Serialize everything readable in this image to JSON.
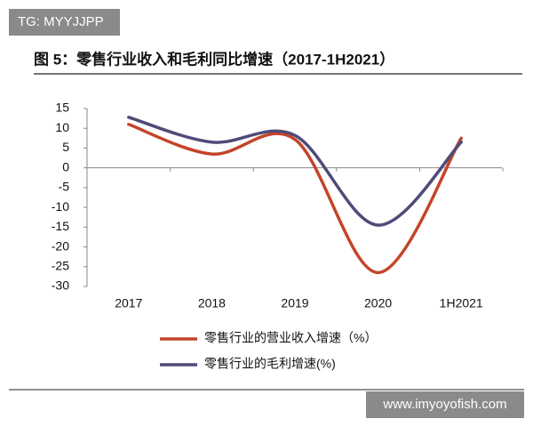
{
  "watermark": "TG: MYYJJPP",
  "footer_watermark": "www.imyoyofish.com",
  "chart_data": {
    "type": "line",
    "title": "图 5：零售行业收入和毛利同比增速（2017-1H2021）",
    "categories": [
      "2017",
      "2018",
      "2019",
      "2020",
      "1H2021"
    ],
    "series": [
      {
        "name": "零售行业的营业收入增速（%）",
        "color": "#c4442a",
        "values": [
          11,
          3.5,
          7.2,
          -26.5,
          7.5
        ]
      },
      {
        "name": "零售行业的毛利增速(%)",
        "color": "#4e4b78",
        "values": [
          12.8,
          6.5,
          8.2,
          -14.5,
          6.5
        ]
      }
    ],
    "ylim": [
      -30,
      15
    ],
    "yticks": [
      15,
      10,
      5,
      0,
      -5,
      -10,
      -15,
      -20,
      -25,
      -30
    ],
    "smooth": true,
    "grid": false
  }
}
